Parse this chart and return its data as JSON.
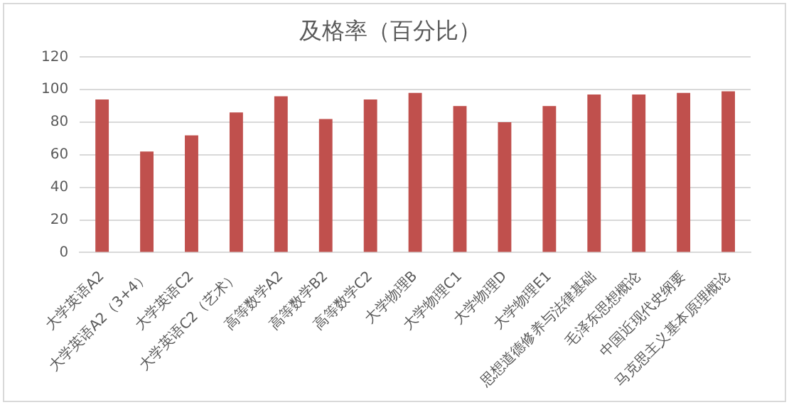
{
  "chart_data": {
    "type": "bar",
    "title": "及格率（百分比）",
    "categories": [
      "大学英语A2",
      "大学英语A2（3+4）",
      "大学英语C2",
      "大学英语C2（艺术）",
      "高等数学A2",
      "高等数学B2",
      "高等数学C2",
      "大学物理B",
      "大学物理C1",
      "大学物理D",
      "大学物理E1",
      "思想道德修养与法律基础",
      "毛泽东思想概论",
      "中国近现代史纲要",
      "马克思主义基本原理概论"
    ],
    "values": [
      94,
      62,
      72,
      86,
      96,
      82,
      94,
      98,
      90,
      80,
      90,
      97,
      97,
      98,
      99
    ],
    "color": "#c0504d",
    "ylim": [
      0,
      120
    ],
    "yticks": [
      0,
      20,
      40,
      60,
      80,
      100,
      120
    ],
    "grid": "y",
    "legend": false
  }
}
